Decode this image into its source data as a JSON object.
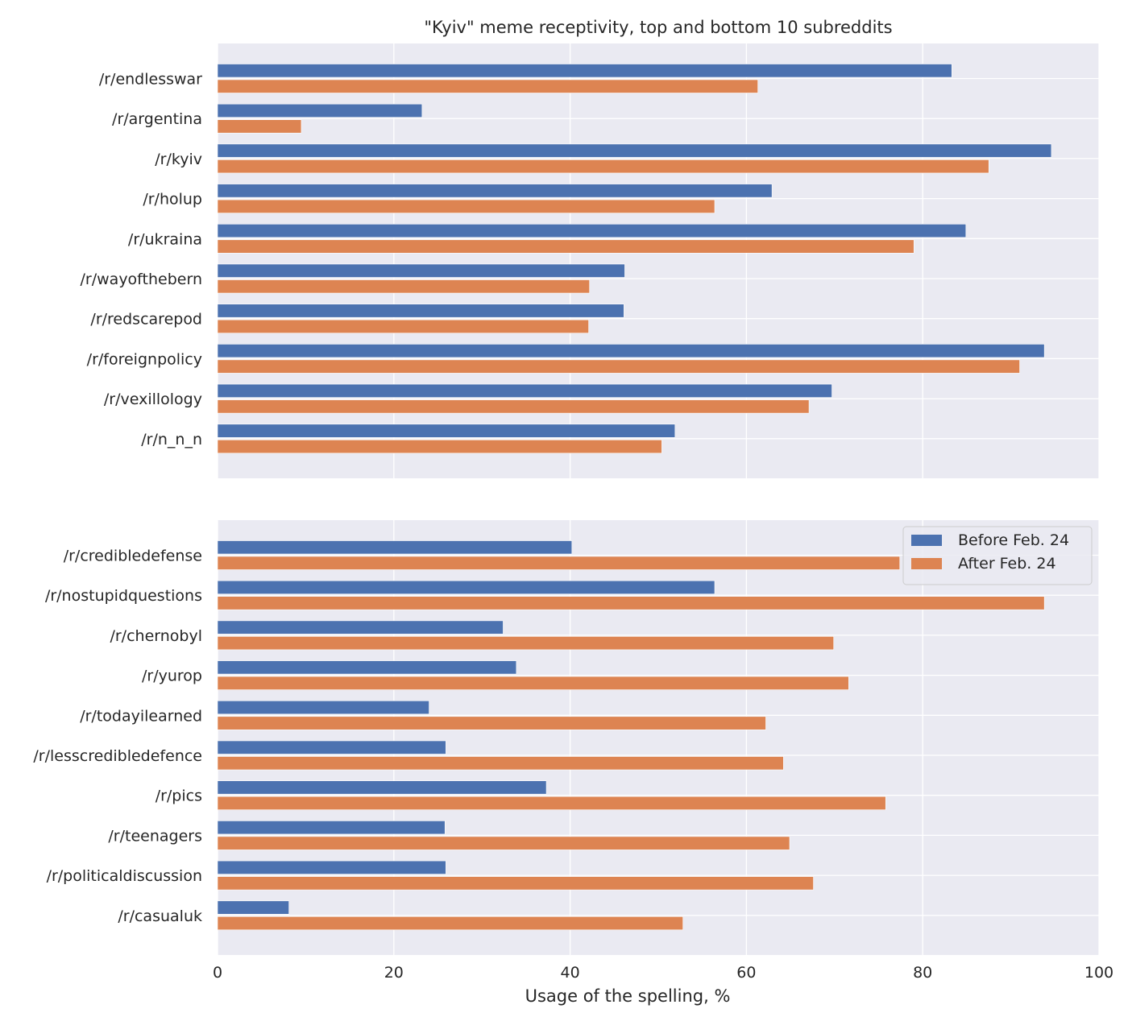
{
  "chart_data": {
    "type": "bar",
    "orientation": "horizontal",
    "title": "\"Kyiv\" meme receptivity, top and bottom 10 subreddits",
    "xlabel": "Usage of the spelling, %",
    "xlim": [
      0,
      100
    ],
    "xticks": [
      "0",
      "20",
      "40",
      "60",
      "80",
      "100"
    ],
    "grid": true,
    "colors": {
      "before": "#4c72b0",
      "after": "#dd8452",
      "background": "#eaeaf2"
    },
    "legend": {
      "placement": "top-right",
      "entries": [
        "Before Feb. 24",
        "After Feb. 24"
      ]
    },
    "panels": [
      {
        "categories": [
          "/r/endlesswar",
          "/r/argentina",
          "/r/kyiv",
          "/r/holup",
          "/r/ukraina",
          "/r/wayofthebern",
          "/r/redscarepod",
          "/r/foreignpolicy",
          "/r/vexillology",
          "/r/n_n_n"
        ],
        "series": [
          {
            "name": "Before Feb. 24",
            "values": [
              83.3,
              23.2,
              94.6,
              62.9,
              84.9,
              46.2,
              46.1,
              93.8,
              69.7,
              51.9
            ]
          },
          {
            "name": "After Feb. 24",
            "values": [
              61.3,
              9.5,
              87.5,
              56.4,
              79.0,
              42.2,
              42.1,
              91.0,
              67.1,
              50.4
            ]
          }
        ]
      },
      {
        "categories": [
          "/r/credibledefense",
          "/r/nostupidquestions",
          "/r/chernobyl",
          "/r/yurop",
          "/r/todayilearned",
          "/r/lesscredibledefence",
          "/r/pics",
          "/r/teenagers",
          "/r/politicaldiscussion",
          "/r/casualuk"
        ],
        "series": [
          {
            "name": "Before Feb. 24",
            "values": [
              40.2,
              56.4,
              32.4,
              33.9,
              24.0,
              25.9,
              37.3,
              25.8,
              25.9,
              8.1
            ]
          },
          {
            "name": "After Feb. 24",
            "values": [
              77.4,
              93.8,
              69.9,
              71.6,
              62.2,
              64.2,
              75.8,
              64.9,
              67.6,
              52.8
            ]
          }
        ]
      }
    ]
  }
}
